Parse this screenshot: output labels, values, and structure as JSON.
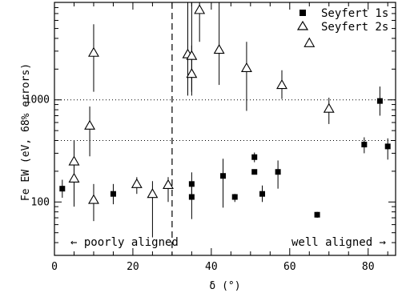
{
  "chart_data": {
    "type": "scatter",
    "xlabel": "δ (°)",
    "ylabel": "Fe EW (eV, 68% errors)",
    "xlim": [
      0,
      87
    ],
    "ylim_log": [
      30,
      9000
    ],
    "y_scale": "log",
    "x_ticks": [
      "0",
      "20",
      "40",
      "60",
      "80"
    ],
    "y_ticks": [
      "100",
      "1000"
    ],
    "ref_lines": [
      1000,
      400
    ],
    "vline_x": 30,
    "legend": {
      "placement": "top-right",
      "entries": [
        "Seyfert 1s",
        "Seyfert 2s"
      ]
    },
    "annotations": {
      "left": "← poorly aligned",
      "right": "well aligned →"
    },
    "series": [
      {
        "name": "Seyfert 1s",
        "marker": "filled-square",
        "points": [
          {
            "x": 2,
            "y": 135,
            "lo": 110,
            "hi": 165
          },
          {
            "x": 15,
            "y": 120,
            "lo": 95,
            "hi": 150
          },
          {
            "x": 35,
            "y": 150,
            "lo": 115,
            "hi": 195
          },
          {
            "x": 35,
            "y": 112,
            "lo": 68,
            "hi": 150
          },
          {
            "x": 43,
            "y": 180,
            "lo": 88,
            "hi": 265
          },
          {
            "x": 46,
            "y": 112,
            "lo": 100,
            "hi": 120
          },
          {
            "x": 51,
            "y": 275,
            "lo": 245,
            "hi": 305
          },
          {
            "x": 51,
            "y": 197,
            "lo": 190,
            "hi": 205
          },
          {
            "x": 53,
            "y": 120,
            "lo": 100,
            "hi": 145
          },
          {
            "x": 57,
            "y": 197,
            "lo": 135,
            "hi": 255
          },
          {
            "x": 67,
            "y": 75,
            "lo": 70,
            "hi": 80
          },
          {
            "x": 79,
            "y": 365,
            "lo": 300,
            "hi": 430
          },
          {
            "x": 83,
            "y": 975,
            "lo": 700,
            "hi": 1350
          },
          {
            "x": 85,
            "y": 350,
            "lo": 260,
            "hi": 420
          }
        ]
      },
      {
        "name": "Seyfert 2s",
        "marker": "open-triangle",
        "points": [
          {
            "x": 5,
            "y": 250,
            "lo": 160,
            "hi": 400
          },
          {
            "x": 5,
            "y": 170,
            "lo": 90,
            "hi": 250
          },
          {
            "x": 9,
            "y": 560,
            "lo": 280,
            "hi": 860
          },
          {
            "x": 10,
            "y": 2900,
            "lo": 1200,
            "hi": 5500
          },
          {
            "x": 10,
            "y": 105,
            "lo": 65,
            "hi": 150
          },
          {
            "x": 21,
            "y": 150,
            "lo": 120,
            "hi": 175
          },
          {
            "x": 25,
            "y": 120,
            "lo": 45,
            "hi": 160
          },
          {
            "x": 29,
            "y": 147,
            "lo": 100,
            "hi": 175
          },
          {
            "x": 34,
            "y": 2800,
            "lo": 1100,
            "hi": 9000
          },
          {
            "x": 35,
            "y": 2700,
            "lo": 1200,
            "hi": 9000
          },
          {
            "x": 35,
            "y": 1800,
            "lo": 1100,
            "hi": 3400
          },
          {
            "x": 37,
            "y": 7600,
            "lo": 3700,
            "hi": 9000
          },
          {
            "x": 42,
            "y": 3100,
            "lo": 1400,
            "hi": 9000
          },
          {
            "x": 49,
            "y": 2050,
            "lo": 780,
            "hi": 3700
          },
          {
            "x": 58,
            "y": 1400,
            "lo": 1020,
            "hi": 1950
          },
          {
            "x": 65,
            "y": 3600,
            "lo": 3400,
            "hi": 3700
          },
          {
            "x": 70,
            "y": 820,
            "lo": 580,
            "hi": 1050
          }
        ]
      }
    ]
  }
}
